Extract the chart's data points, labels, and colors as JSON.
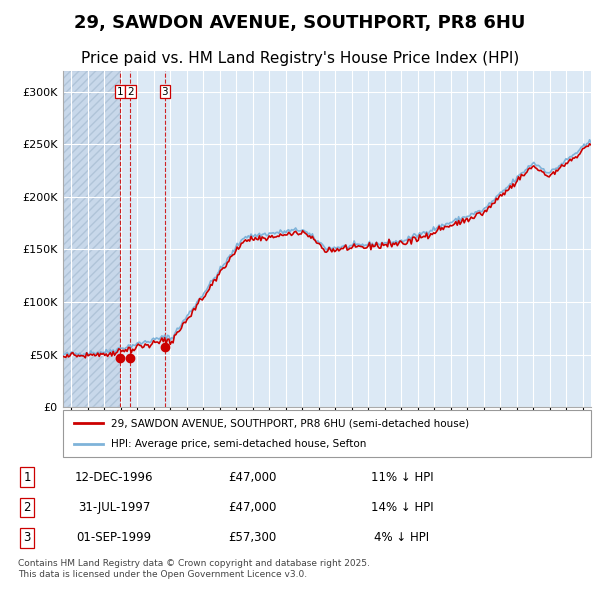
{
  "title": "29, SAWDON AVENUE, SOUTHPORT, PR8 6HU",
  "subtitle": "Price paid vs. HM Land Registry's House Price Index (HPI)",
  "title_fontsize": 13,
  "subtitle_fontsize": 11,
  "bg_chart": "#dce9f5",
  "bg_hatch": "#c8d8ea",
  "hpi_color": "#7fb3d9",
  "price_color": "#cc0000",
  "marker_color": "#cc0000",
  "vline_color": "#cc0000",
  "grid_color": "#ffffff",
  "legend_label_price": "29, SAWDON AVENUE, SOUTHPORT, PR8 6HU (semi-detached house)",
  "legend_label_hpi": "HPI: Average price, semi-detached house, Sefton",
  "footer": "Contains HM Land Registry data © Crown copyright and database right 2025.\nThis data is licensed under the Open Government Licence v3.0.",
  "transactions": [
    {
      "num": 1,
      "date": 1996.96,
      "price": 47000
    },
    {
      "num": 2,
      "date": 1997.58,
      "price": 47000
    },
    {
      "num": 3,
      "date": 1999.67,
      "price": 57300
    }
  ],
  "table_rows": [
    {
      "num": 1,
      "date": "12-DEC-1996",
      "price": "£47,000",
      "hpi": "11% ↓ HPI"
    },
    {
      "num": 2,
      "date": "31-JUL-1997",
      "price": "£47,000",
      "hpi": "14% ↓ HPI"
    },
    {
      "num": 3,
      "date": "01-SEP-1999",
      "price": "£57,300",
      "hpi": "4% ↓ HPI"
    }
  ],
  "ylim": [
    0,
    320000
  ],
  "xlim_start": 1993.5,
  "xlim_end": 2025.5,
  "hatch_end": 1997.0
}
